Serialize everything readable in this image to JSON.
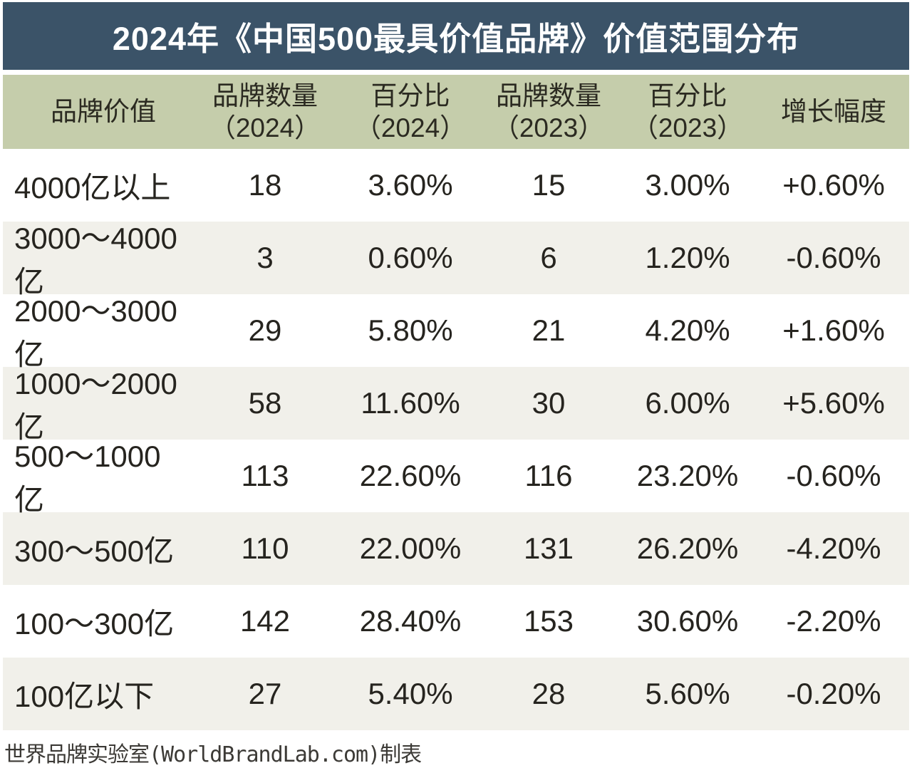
{
  "title": {
    "text": "2024年《中国500最具价值品牌》价值范围分布"
  },
  "colors": {
    "title_bar_bg": "#3b5368",
    "title_text": "#ffffff",
    "header_bg": "#c5cdab",
    "row_alt_bg": "#f1f0ea",
    "row_bg": "#ffffff",
    "body_text": "#26241f"
  },
  "header": {
    "brand_value": "品牌价值",
    "count_2024_l1": "品牌数量",
    "count_2024_l2": "（2024）",
    "pct_2024_l1": "百分比",
    "pct_2024_l2": "（2024）",
    "count_2023_l1": "品牌数量",
    "count_2023_l2": "（2023）",
    "pct_2023_l1": "百分比",
    "pct_2023_l2": "（2023）",
    "growth": "增长幅度"
  },
  "footer": {
    "credit": "世界品牌实验室(WorldBrandLab.com)制表"
  },
  "chart_data": {
    "type": "table",
    "title": "2024年《中国500最具价值品牌》价值范围分布",
    "columns": [
      "品牌价值",
      "品牌数量（2024）",
      "百分比（2024）",
      "品牌数量（2023）",
      "百分比（2023）",
      "增长幅度"
    ],
    "rows": [
      [
        "4000亿以上",
        "18",
        "3.60%",
        "15",
        "3.00%",
        "+0.60%"
      ],
      [
        "3000～4000亿",
        "3",
        "0.60%",
        "6",
        "1.20%",
        "-0.60%"
      ],
      [
        "2000～3000亿",
        "29",
        "5.80%",
        "21",
        "4.20%",
        "+1.60%"
      ],
      [
        "1000～2000亿",
        "58",
        "11.60%",
        "30",
        "6.00%",
        "+5.60%"
      ],
      [
        "500～1000亿",
        "113",
        "22.60%",
        "116",
        "23.20%",
        "-0.60%"
      ],
      [
        "300～500亿",
        "110",
        "22.00%",
        "131",
        "26.20%",
        "-4.20%"
      ],
      [
        "100～300亿",
        "142",
        "28.40%",
        "153",
        "30.60%",
        "-2.20%"
      ],
      [
        "100亿以下",
        "27",
        "5.40%",
        "28",
        "5.60%",
        "-0.20%"
      ]
    ]
  }
}
